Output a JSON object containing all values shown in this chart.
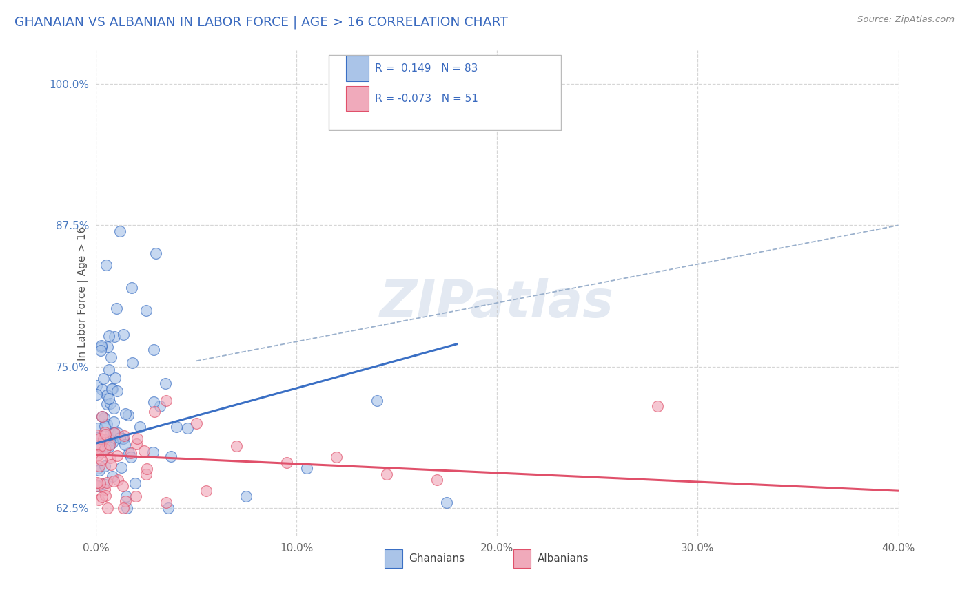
{
  "title": "GHANAIAN VS ALBANIAN IN LABOR FORCE | AGE > 16 CORRELATION CHART",
  "source_text": "Source: ZipAtlas.com",
  "ylabel_label": "In Labor Force | Age > 16",
  "ghanaian_color": "#aac4e8",
  "albanian_color": "#f0aabb",
  "ghanaian_line_color": "#3a6fc4",
  "albanian_line_color": "#e0506a",
  "watermark": "ZIPatlas",
  "xlim": [
    0.0,
    40.0
  ],
  "ylim": [
    60.0,
    103.0
  ],
  "yticks": [
    62.5,
    75.0,
    87.5,
    100.0
  ],
  "xticks": [
    0,
    10,
    20,
    30,
    40
  ],
  "blue_line_x": [
    0,
    18
  ],
  "blue_line_y": [
    68.2,
    77.0
  ],
  "pink_line_x": [
    0,
    40
  ],
  "pink_line_y": [
    67.2,
    64.0
  ],
  "dash_line_x": [
    5,
    40
  ],
  "dash_line_y": [
    75.5,
    87.5
  ],
  "legend_R1": "R =  0.149",
  "legend_N1": "N = 83",
  "legend_R2": "R = -0.073",
  "legend_N2": "N = 51"
}
